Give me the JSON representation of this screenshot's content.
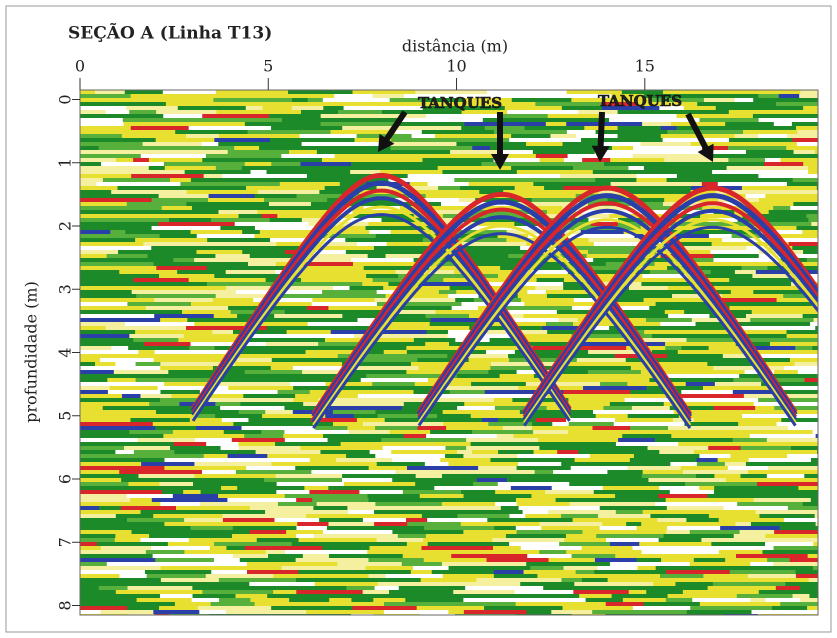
{
  "chart_data": {
    "type": "radargram",
    "title": "SEÇÃO A (Linha T13)",
    "xlabel": "distância (m)",
    "ylabel": "profundidade (m)",
    "xlim": [
      0,
      19.6
    ],
    "xticks": [
      0,
      5,
      10,
      15
    ],
    "ylim": [
      -0.15,
      8.15
    ],
    "yticks": [
      0,
      1,
      2,
      3,
      4,
      5,
      6,
      7,
      8
    ],
    "annotations": [
      "TANQUES",
      "TANQUES"
    ],
    "hyperbolas": [
      {
        "x": 8.0,
        "depth": 1.2
      },
      {
        "x": 11.2,
        "depth": 1.5
      },
      {
        "x": 14.0,
        "depth": 1.4
      },
      {
        "x": 16.8,
        "depth": 1.4
      }
    ]
  }
}
